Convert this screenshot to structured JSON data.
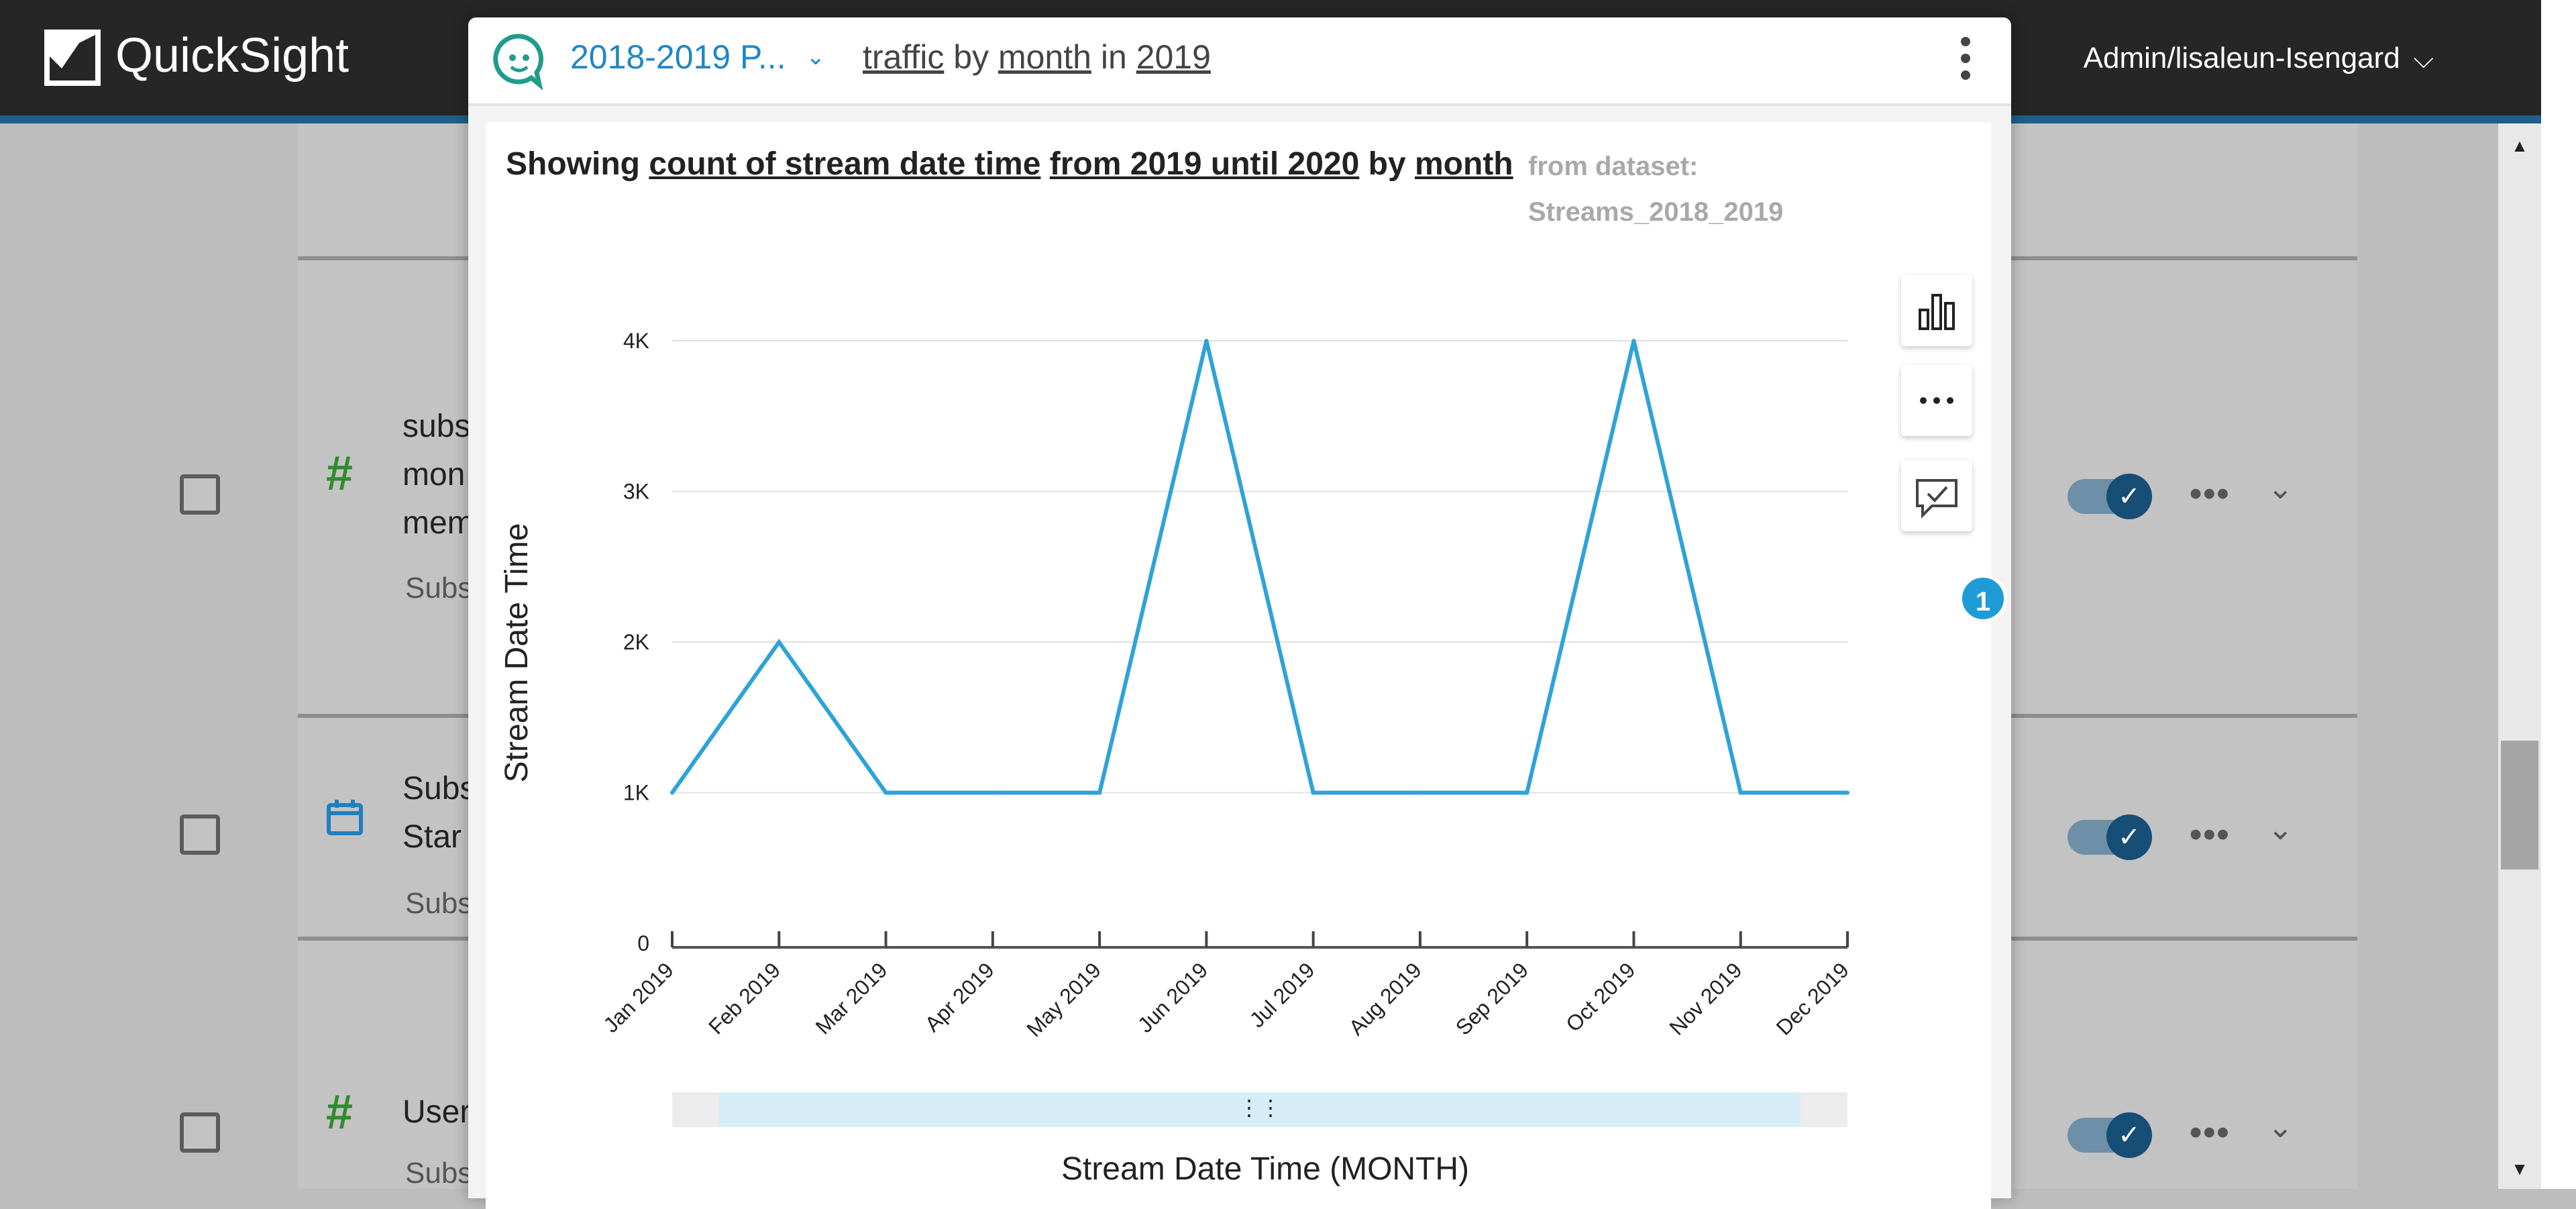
{
  "app": {
    "name": "QuickSight",
    "user": "Admin/lisaleun-Isengard",
    "user_chevron": "⌵"
  },
  "background_list": {
    "rows": [
      {
        "icon": "#",
        "name_lines": [
          "subs",
          "mon",
          "mem"
        ],
        "sub": "Subs"
      },
      {
        "icon": "calendar",
        "name_lines": [
          "Subs",
          "Star"
        ],
        "sub": "Subs"
      },
      {
        "icon": "#",
        "name_lines": [
          "User"
        ],
        "sub": "Subs"
      }
    ],
    "toggle_check": "✓",
    "more": "•••",
    "expand": "⌄",
    "scroll_up": "▲",
    "scroll_down": "▼"
  },
  "modal": {
    "topic": "2018-2019 P...",
    "topic_chevron": "⌄",
    "query": {
      "measure": "traffic",
      "by": "by",
      "dimension": "month",
      "in": "in",
      "period": "2019"
    },
    "summary": {
      "prefix": "Showing",
      "measure": "count of stream date time",
      "range": "from 2019 until 2020",
      "by": "by",
      "dimension": "month"
    },
    "dataset": {
      "label": "from dataset:",
      "name": "Streams_2018_2019"
    },
    "side_buttons": [
      "bar-chart-icon",
      "more-icon",
      "feedback-icon"
    ],
    "more_glyph": "•••",
    "feedback_badge": "1"
  },
  "chart_data": {
    "type": "line",
    "x": [
      "Jan 2019",
      "Feb 2019",
      "Mar 2019",
      "Apr 2019",
      "May 2019",
      "Jun 2019",
      "Jul 2019",
      "Aug 2019",
      "Sep 2019",
      "Oct 2019",
      "Nov 2019",
      "Dec 2019"
    ],
    "series": [
      {
        "values": [
          1000,
          2000,
          1000,
          1000,
          1000,
          4000,
          1000,
          1000,
          1000,
          4000,
          1000,
          1000
        ]
      }
    ],
    "xlabel": "Stream Date Time (MONTH)",
    "ylabel": "Stream Date Time",
    "ylim": [
      0,
      4000
    ],
    "yticks": [
      {
        "value": 0,
        "label": "0"
      },
      {
        "value": 1000,
        "label": "1K"
      },
      {
        "value": 2000,
        "label": "2K"
      },
      {
        "value": 3000,
        "label": "3K"
      },
      {
        "value": 4000,
        "label": "4K"
      }
    ],
    "grid": true,
    "line_color": "#2ea3d8",
    "range_slider": true,
    "range_handle_glyph": "⋮⋮"
  }
}
